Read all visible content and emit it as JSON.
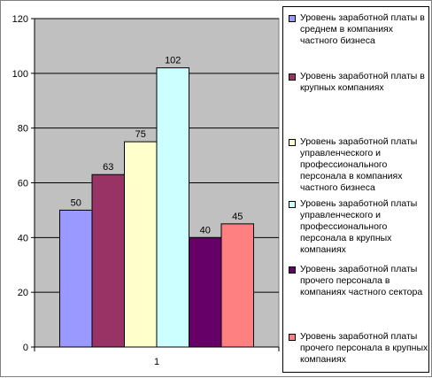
{
  "chart_data": {
    "type": "bar",
    "categories": [
      "1"
    ],
    "ylim": [
      0,
      120
    ],
    "yticks": [
      0,
      20,
      40,
      60,
      80,
      100,
      120
    ],
    "grid": true,
    "legend_position": "right",
    "plot_background": "#c0c0c0",
    "series": [
      {
        "name": "Уровень заработной платы в среднем в компаниях частного бизнеса",
        "value": 50,
        "label": "50",
        "color": "#9999ff"
      },
      {
        "name": "Уровень заработной платы в крупных компаниях",
        "value": 63,
        "label": "63",
        "color": "#993366"
      },
      {
        "name": "Уровень заработной платы управленческого и профессионального персонала в компаниях частного бизнеса",
        "value": 75,
        "label": "75",
        "color": "#ffffcc"
      },
      {
        "name": "Уровень заработной платы управленческого и профессионального персонала в крупных компаниях",
        "value": 102,
        "label": "102",
        "color": "#ccffff"
      },
      {
        "name": "Уровень заработной платы прочего персонала в компаниях частного сектора",
        "value": 40,
        "label": "40",
        "color": "#660066"
      },
      {
        "name": "Уровень заработной платы прочего персонала в крупных компаниях",
        "value": 45,
        "label": "45",
        "color": "#ff8080"
      }
    ]
  }
}
